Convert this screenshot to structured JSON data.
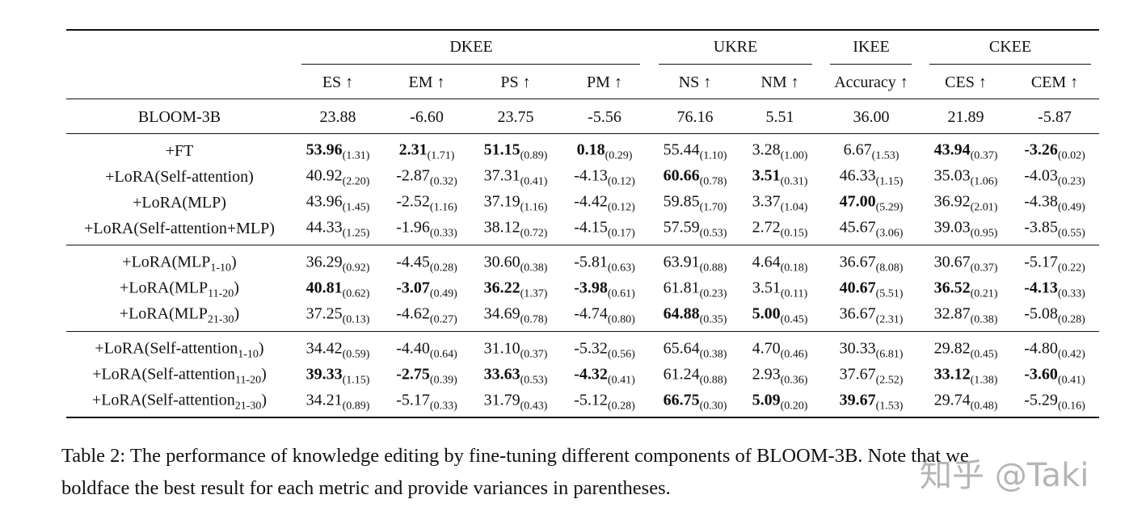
{
  "table": {
    "groups": [
      "DKEE",
      "UKRE",
      "IKEE",
      "CKEE"
    ],
    "columns": [
      "ES ↑",
      "EM ↑",
      "PS ↑",
      "PM ↑",
      "NS ↑",
      "NM ↑",
      "Accuracy ↑",
      "CES ↑",
      "CEM ↑"
    ],
    "rows": [
      {
        "label": "BLOOM-3B",
        "cells": [
          {
            "value": "23.88"
          },
          {
            "value": "-6.60"
          },
          {
            "value": "23.75"
          },
          {
            "value": "-5.56"
          },
          {
            "value": "76.16"
          },
          {
            "value": "5.51"
          },
          {
            "value": "36.00"
          },
          {
            "value": "21.89"
          },
          {
            "value": "-5.87"
          }
        ]
      },
      {
        "label": "+FT",
        "cells": [
          {
            "value": "53.96",
            "variance": "(1.31)",
            "bold": true
          },
          {
            "value": "2.31",
            "variance": "(1.71)",
            "bold": true
          },
          {
            "value": "51.15",
            "variance": "(0.89)",
            "bold": true
          },
          {
            "value": "0.18",
            "variance": "(0.29)",
            "bold": true
          },
          {
            "value": "55.44",
            "variance": "(1.10)"
          },
          {
            "value": "3.28",
            "variance": "(1.00)"
          },
          {
            "value": "6.67",
            "variance": "(1.53)"
          },
          {
            "value": "43.94",
            "variance": "(0.37)",
            "bold": true
          },
          {
            "value": "-3.26",
            "variance": "(0.02)",
            "bold": true
          }
        ]
      },
      {
        "label": "+LoRA(Self-attention)",
        "cells": [
          {
            "value": "40.92",
            "variance": "(2.20)"
          },
          {
            "value": "-2.87",
            "variance": "(0.32)"
          },
          {
            "value": "37.31",
            "variance": "(0.41)"
          },
          {
            "value": "-4.13",
            "variance": "(0.12)"
          },
          {
            "value": "60.66",
            "variance": "(0.78)",
            "bold": true
          },
          {
            "value": "3.51",
            "variance": "(0.31)",
            "bold": true
          },
          {
            "value": "46.33",
            "variance": "(1.15)"
          },
          {
            "value": "35.03",
            "variance": "(1.06)"
          },
          {
            "value": "-4.03",
            "variance": "(0.23)"
          }
        ]
      },
      {
        "label": "+LoRA(MLP)",
        "cells": [
          {
            "value": "43.96",
            "variance": "(1.45)"
          },
          {
            "value": "-2.52",
            "variance": "(1.16)"
          },
          {
            "value": "37.19",
            "variance": "(1.16)"
          },
          {
            "value": "-4.42",
            "variance": "(0.12)"
          },
          {
            "value": "59.85",
            "variance": "(1.70)"
          },
          {
            "value": "3.37",
            "variance": "(1.04)"
          },
          {
            "value": "47.00",
            "variance": "(5.29)",
            "bold": true
          },
          {
            "value": "36.92",
            "variance": "(2.01)"
          },
          {
            "value": "-4.38",
            "variance": "(0.49)"
          }
        ]
      },
      {
        "label": "+LoRA(Self-attention+MLP)",
        "cells": [
          {
            "value": "44.33",
            "variance": "(1.25)"
          },
          {
            "value": "-1.96",
            "variance": "(0.33)"
          },
          {
            "value": "38.12",
            "variance": "(0.72)"
          },
          {
            "value": "-4.15",
            "variance": "(0.17)"
          },
          {
            "value": "57.59",
            "variance": "(0.53)"
          },
          {
            "value": "2.72",
            "variance": "(0.15)"
          },
          {
            "value": "45.67",
            "variance": "(3.06)"
          },
          {
            "value": "39.03",
            "variance": "(0.95)"
          },
          {
            "value": "-3.85",
            "variance": "(0.55)"
          }
        ]
      },
      {
        "label": "+LoRA(MLP",
        "label_sub": "1-10",
        "label_end": ")",
        "cells": [
          {
            "value": "36.29",
            "variance": "(0.92)"
          },
          {
            "value": "-4.45",
            "variance": "(0.28)"
          },
          {
            "value": "30.60",
            "variance": "(0.38)"
          },
          {
            "value": "-5.81",
            "variance": "(0.63)"
          },
          {
            "value": "63.91",
            "variance": "(0.88)"
          },
          {
            "value": "4.64",
            "variance": "(0.18)"
          },
          {
            "value": "36.67",
            "variance": "(8.08)"
          },
          {
            "value": "30.67",
            "variance": "(0.37)"
          },
          {
            "value": "-5.17",
            "variance": "(0.22)"
          }
        ]
      },
      {
        "label": "+LoRA(MLP",
        "label_sub": "11-20",
        "label_end": ")",
        "cells": [
          {
            "value": "40.81",
            "variance": "(0.62)",
            "bold": true
          },
          {
            "value": "-3.07",
            "variance": "(0.49)",
            "bold": true
          },
          {
            "value": "36.22",
            "variance": "(1.37)",
            "bold": true
          },
          {
            "value": "-3.98",
            "variance": "(0.61)",
            "bold": true
          },
          {
            "value": "61.81",
            "variance": "(0.23)"
          },
          {
            "value": "3.51",
            "variance": "(0.11)"
          },
          {
            "value": "40.67",
            "variance": "(5.51)",
            "bold": true
          },
          {
            "value": "36.52",
            "variance": "(0.21)",
            "bold": true
          },
          {
            "value": "-4.13",
            "variance": "(0.33)",
            "bold": true
          }
        ]
      },
      {
        "label": "+LoRA(MLP",
        "label_sub": "21-30",
        "label_end": ")",
        "cells": [
          {
            "value": "37.25",
            "variance": "(0.13)"
          },
          {
            "value": "-4.62",
            "variance": "(0.27)"
          },
          {
            "value": "34.69",
            "variance": "(0.78)"
          },
          {
            "value": "-4.74",
            "variance": "(0.80)"
          },
          {
            "value": "64.88",
            "variance": "(0.35)",
            "bold": true
          },
          {
            "value": "5.00",
            "variance": "(0.45)",
            "bold": true
          },
          {
            "value": "36.67",
            "variance": "(2.31)"
          },
          {
            "value": "32.87",
            "variance": "(0.38)"
          },
          {
            "value": "-5.08",
            "variance": "(0.28)"
          }
        ]
      },
      {
        "label": "+LoRA(Self-attention",
        "label_sub": "1-10",
        "label_end": ")",
        "cells": [
          {
            "value": "34.42",
            "variance": "(0.59)"
          },
          {
            "value": "-4.40",
            "variance": "(0.64)"
          },
          {
            "value": "31.10",
            "variance": "(0.37)"
          },
          {
            "value": "-5.32",
            "variance": "(0.56)"
          },
          {
            "value": "65.64",
            "variance": "(0.38)"
          },
          {
            "value": "4.70",
            "variance": "(0.46)"
          },
          {
            "value": "30.33",
            "variance": "(6.81)"
          },
          {
            "value": "29.82",
            "variance": "(0.45)"
          },
          {
            "value": "-4.80",
            "variance": "(0.42)"
          }
        ]
      },
      {
        "label": "+LoRA(Self-attention",
        "label_sub": "11-20",
        "label_end": ")",
        "cells": [
          {
            "value": "39.33",
            "variance": "(1.15)",
            "bold": true
          },
          {
            "value": "-2.75",
            "variance": "(0.39)",
            "bold": true
          },
          {
            "value": "33.63",
            "variance": "(0.53)",
            "bold": true
          },
          {
            "value": "-4.32",
            "variance": "(0.41)",
            "bold": true
          },
          {
            "value": "61.24",
            "variance": "(0.88)"
          },
          {
            "value": "2.93",
            "variance": "(0.36)"
          },
          {
            "value": "37.67",
            "variance": "(2.52)"
          },
          {
            "value": "33.12",
            "variance": "(1.38)",
            "bold": true
          },
          {
            "value": "-3.60",
            "variance": "(0.41)",
            "bold": true
          }
        ]
      },
      {
        "label": "+LoRA(Self-attention",
        "label_sub": "21-30",
        "label_end": ")",
        "cells": [
          {
            "value": "34.21",
            "variance": "(0.89)"
          },
          {
            "value": "-5.17",
            "variance": "(0.33)"
          },
          {
            "value": "31.79",
            "variance": "(0.43)"
          },
          {
            "value": "-5.12",
            "variance": "(0.28)"
          },
          {
            "value": "66.75",
            "variance": "(0.30)",
            "bold": true
          },
          {
            "value": "5.09",
            "variance": "(0.20)",
            "bold": true
          },
          {
            "value": "39.67",
            "variance": "(1.53)",
            "bold": true
          },
          {
            "value": "29.74",
            "variance": "(0.48)"
          },
          {
            "value": "-5.29",
            "variance": "(0.16)"
          }
        ]
      }
    ]
  },
  "caption": [
    "Table 2: The performance of knowledge editing by fine-tuning different components of BLOOM-3B. Note that we",
    "boldface the best result for each metric and provide variances in parentheses."
  ],
  "watermark": "知乎 @Taki"
}
